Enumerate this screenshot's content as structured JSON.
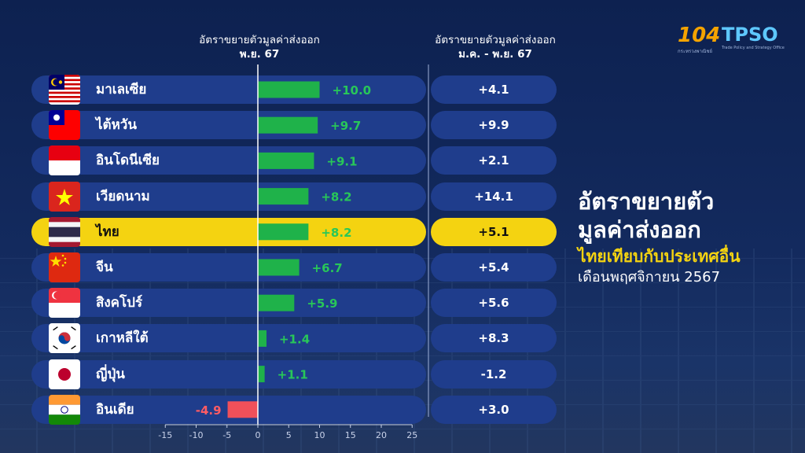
{
  "headers": {
    "left_title": "อัตราขยายตัวมูลค่าส่งออก",
    "left_sub": "พ.ย. 67",
    "right_title": "อัตราขยายตัวมูลค่าส่งออก",
    "right_sub": "ม.ค. - พ.ย. 67"
  },
  "title_block": {
    "line1": "อัตราขยายตัว",
    "line2": "มูลค่าส่งออก",
    "line3": "ไทยเทียบกับประเทศอื่น",
    "line4": "เดือนพฤศจิกายน 2567"
  },
  "logos": {
    "anniv": "104",
    "anniv_sub": "กระทรวงพาณิชย์",
    "tpso": "TPSO",
    "tpso_sub": "Trade Policy and Strategy Office"
  },
  "rows": [
    {
      "country": "มาเลเซีย",
      "flag": "malaysia-flag",
      "nov": "+10.0",
      "ytd": "+4.1",
      "highlight": false
    },
    {
      "country": "ไต้หวัน",
      "flag": "taiwan-flag",
      "nov": "+9.7",
      "ytd": "+9.9",
      "highlight": false
    },
    {
      "country": "อินโดนีเซีย",
      "flag": "indonesia-flag",
      "nov": "+9.1",
      "ytd": "+2.1",
      "highlight": false
    },
    {
      "country": "เวียดนาม",
      "flag": "vietnam-flag",
      "nov": "+8.2",
      "ytd": "+14.1",
      "highlight": false
    },
    {
      "country": "ไทย",
      "flag": "thailand-flag",
      "nov": "+8.2",
      "ytd": "+5.1",
      "highlight": true
    },
    {
      "country": "จีน",
      "flag": "china-flag",
      "nov": "+6.7",
      "ytd": "+5.4",
      "highlight": false
    },
    {
      "country": "สิงคโปร์",
      "flag": "singapore-flag",
      "nov": "+5.9",
      "ytd": "+5.6",
      "highlight": false
    },
    {
      "country": "เกาหลีใต้",
      "flag": "south-korea-flag",
      "nov": "+1.4",
      "ytd": "+8.3",
      "highlight": false
    },
    {
      "country": "ญี่ปุ่น",
      "flag": "japan-flag",
      "nov": "+1.1",
      "ytd": "-1.2",
      "highlight": false
    },
    {
      "country": "อินเดีย",
      "flag": "india-flag",
      "nov": "-4.9",
      "ytd": "+3.0",
      "highlight": false
    }
  ],
  "chart_data": {
    "type": "bar",
    "orientation": "horizontal",
    "categories": [
      "มาเลเซีย",
      "ไต้หวัน",
      "อินโดนีเซีย",
      "เวียดนาม",
      "ไทย",
      "จีน",
      "สิงคโปร์",
      "เกาหลีใต้",
      "ญี่ปุ่น",
      "อินเดีย"
    ],
    "values": [
      10.0,
      9.7,
      9.1,
      8.2,
      8.2,
      6.7,
      5.9,
      1.4,
      1.1,
      -4.9
    ],
    "xlim": [
      -15,
      25
    ],
    "xticks": [
      -15,
      -10,
      -5,
      0,
      5,
      10,
      15,
      20,
      25
    ],
    "positive_color": "#1fb24a",
    "negative_color": "#f0505a",
    "positive_label_color": "#28c759",
    "negative_label_color": "#ff5c64"
  },
  "colors": {
    "row_bg": "#1f3d8c",
    "highlight": "#f4d311"
  }
}
